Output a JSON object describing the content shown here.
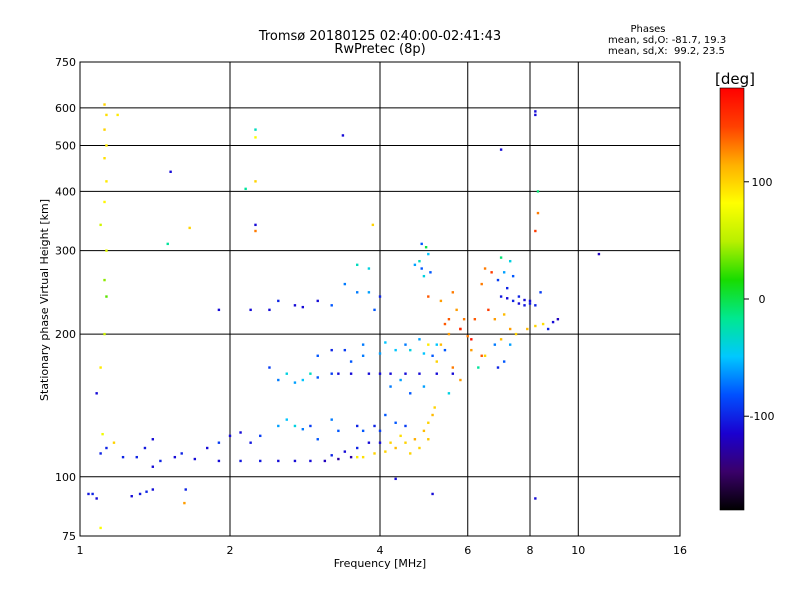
{
  "chart_data": {
    "type": "scatter",
    "title": "Tromsø 20180125 02:40:00-02:41:43",
    "subtitle": "RwPretec (8p)",
    "xlabel": "Frequency [MHz]",
    "ylabel": "Stationary phase Virtual Height [km]",
    "x_scale": "log",
    "y_scale": "log",
    "xlim": [
      1,
      16
    ],
    "ylim": [
      75,
      750
    ],
    "x_ticks": [
      1,
      2,
      4,
      6,
      8,
      10,
      16
    ],
    "y_ticks": [
      75,
      100,
      200,
      300,
      400,
      500,
      600,
      750
    ],
    "grid": true,
    "stats": {
      "heading": "Phases",
      "line1": "mean, sd,O: -81.7, 19.3",
      "line2": "mean, sd,X:  99.2, 23.5"
    },
    "colorbar": {
      "label": "[deg]",
      "range": [
        -180,
        180
      ],
      "ticks": [
        100,
        0,
        -100
      ],
      "colors": [
        "#000000",
        "#3a006a",
        "#1a00d0",
        "#0050ff",
        "#00c8ff",
        "#00e890",
        "#18dc00",
        "#b8f000",
        "#ffff00",
        "#ffb000",
        "#ff4000",
        "#ff0000"
      ]
    },
    "points": [
      [
        1.04,
        92,
        -105
      ],
      [
        1.06,
        92,
        -100
      ],
      [
        1.08,
        90,
        -110
      ],
      [
        1.27,
        91,
        -110
      ],
      [
        1.32,
        92,
        -105
      ],
      [
        1.36,
        93,
        -100
      ],
      [
        1.4,
        94,
        -108
      ],
      [
        1.22,
        110,
        -100
      ],
      [
        1.08,
        150,
        -110
      ],
      [
        1.1,
        170,
        90
      ],
      [
        1.12,
        200,
        60
      ],
      [
        1.13,
        240,
        30
      ],
      [
        1.12,
        260,
        40
      ],
      [
        1.13,
        300,
        70
      ],
      [
        1.1,
        340,
        60
      ],
      [
        1.12,
        380,
        85
      ],
      [
        1.13,
        420,
        90
      ],
      [
        1.12,
        470,
        95
      ],
      [
        1.13,
        500,
        90
      ],
      [
        1.12,
        540,
        100
      ],
      [
        1.13,
        580,
        95
      ],
      [
        1.12,
        610,
        100
      ],
      [
        1.11,
        123,
        75
      ],
      [
        1.1,
        78,
        80
      ],
      [
        1.19,
        580,
        90
      ],
      [
        1.52,
        440,
        -110
      ],
      [
        1.5,
        310,
        -20
      ],
      [
        1.66,
        335,
        100
      ],
      [
        1.63,
        94,
        -100
      ],
      [
        2.15,
        405,
        -20
      ],
      [
        2.25,
        520,
        80
      ],
      [
        2.25,
        540,
        -30
      ],
      [
        2.25,
        420,
        100
      ],
      [
        2.25,
        340,
        -110
      ],
      [
        2.25,
        330,
        130
      ],
      [
        3.37,
        525,
        -110
      ],
      [
        3.87,
        340,
        100
      ],
      [
        7.0,
        490,
        -110
      ],
      [
        8.2,
        590,
        -110
      ],
      [
        8.2,
        580,
        -110
      ],
      [
        8.3,
        400,
        -10
      ],
      [
        8.3,
        360,
        130
      ],
      [
        8.2,
        330,
        150
      ],
      [
        11.0,
        295,
        -120
      ],
      [
        4.85,
        310,
        -80
      ],
      [
        4.95,
        305,
        0
      ],
      [
        5.0,
        295,
        -50
      ],
      [
        4.7,
        280,
        -60
      ],
      [
        4.85,
        275,
        -80
      ],
      [
        5.05,
        270,
        -80
      ],
      [
        4.9,
        265,
        -40
      ],
      [
        4.8,
        285,
        -30
      ],
      [
        7.0,
        290,
        -10
      ],
      [
        7.3,
        285,
        -40
      ],
      [
        7.1,
        270,
        -60
      ],
      [
        7.4,
        265,
        -80
      ],
      [
        6.9,
        260,
        -90
      ],
      [
        7.2,
        250,
        -100
      ],
      [
        6.5,
        275,
        130
      ],
      [
        6.7,
        270,
        150
      ],
      [
        6.4,
        255,
        130
      ],
      [
        7.6,
        240,
        -100
      ],
      [
        8.0,
        235,
        -110
      ],
      [
        8.4,
        245,
        -90
      ],
      [
        7.8,
        230,
        -105
      ],
      [
        8.9,
        212,
        -110
      ],
      [
        9.1,
        215,
        -120
      ],
      [
        8.7,
        205,
        -100
      ],
      [
        7.5,
        200,
        100
      ],
      [
        7.9,
        205,
        110
      ],
      [
        8.2,
        208,
        100
      ],
      [
        8.5,
        210,
        95
      ],
      [
        6.0,
        198,
        130
      ],
      [
        5.8,
        205,
        150
      ],
      [
        5.5,
        200,
        120
      ],
      [
        5.3,
        190,
        110
      ],
      [
        5.0,
        190,
        90
      ],
      [
        6.2,
        215,
        140
      ],
      [
        6.6,
        225,
        150
      ],
      [
        6.1,
        185,
        120
      ],
      [
        5.2,
        175,
        100
      ],
      [
        5.6,
        170,
        130
      ],
      [
        6.4,
        180,
        140
      ],
      [
        6.8,
        190,
        -70
      ],
      [
        7.3,
        190,
        -60
      ],
      [
        7.1,
        175,
        -80
      ],
      [
        6.9,
        170,
        -100
      ],
      [
        5.8,
        205,
        160
      ],
      [
        6.1,
        195,
        170
      ],
      [
        5.4,
        210,
        140
      ],
      [
        5.9,
        215,
        130
      ],
      [
        5.0,
        130,
        100
      ],
      [
        4.9,
        125,
        110
      ],
      [
        4.7,
        120,
        115
      ],
      [
        4.5,
        118,
        100
      ],
      [
        4.3,
        115,
        110
      ],
      [
        4.1,
        113,
        100
      ],
      [
        3.9,
        112,
        100
      ],
      [
        3.7,
        110,
        95
      ],
      [
        3.6,
        110,
        90
      ],
      [
        4.8,
        115,
        100
      ],
      [
        5.0,
        120,
        105
      ],
      [
        4.6,
        112,
        100
      ],
      [
        4.4,
        122,
        95
      ],
      [
        4.2,
        118,
        100
      ],
      [
        5.1,
        135,
        110
      ],
      [
        5.15,
        140,
        100
      ],
      [
        3.5,
        110,
        -130
      ],
      [
        3.3,
        109,
        -130
      ],
      [
        3.1,
        108,
        -120
      ],
      [
        2.9,
        108,
        -110
      ],
      [
        2.7,
        108,
        -110
      ],
      [
        2.5,
        108,
        -110
      ],
      [
        2.3,
        108,
        -105
      ],
      [
        2.1,
        108,
        -105
      ],
      [
        1.9,
        108,
        -110
      ],
      [
        1.7,
        109,
        -110
      ],
      [
        1.55,
        110,
        -110
      ],
      [
        1.45,
        108,
        -100
      ],
      [
        1.4,
        105,
        -110
      ],
      [
        3.2,
        111,
        -100
      ],
      [
        3.4,
        113,
        -110
      ],
      [
        3.6,
        115,
        -100
      ],
      [
        3.8,
        118,
        -110
      ],
      [
        4.0,
        118,
        -110
      ],
      [
        1.6,
        112,
        -100
      ],
      [
        1.8,
        115,
        -110
      ],
      [
        1.9,
        118,
        -90
      ],
      [
        2.0,
        122,
        -110
      ],
      [
        2.1,
        124,
        -110
      ],
      [
        2.2,
        118,
        -105
      ],
      [
        2.3,
        122,
        -90
      ],
      [
        2.5,
        128,
        -60
      ],
      [
        2.6,
        132,
        -50
      ],
      [
        2.7,
        128,
        -40
      ],
      [
        2.8,
        126,
        -70
      ],
      [
        2.9,
        128,
        -90
      ],
      [
        3.0,
        120,
        -80
      ],
      [
        3.3,
        125,
        -80
      ],
      [
        3.2,
        132,
        -70
      ],
      [
        2.5,
        160,
        -70
      ],
      [
        2.6,
        165,
        -40
      ],
      [
        2.7,
        158,
        -60
      ],
      [
        2.8,
        160,
        -50
      ],
      [
        2.9,
        165,
        -30
      ],
      [
        3.0,
        162,
        -80
      ],
      [
        3.2,
        165,
        -90
      ],
      [
        2.4,
        170,
        -90
      ],
      [
        3.3,
        165,
        -110
      ],
      [
        3.5,
        165,
        -110
      ],
      [
        3.8,
        165,
        -110
      ],
      [
        4.0,
        165,
        -110
      ],
      [
        4.2,
        165,
        -110
      ],
      [
        4.5,
        165,
        -110
      ],
      [
        4.8,
        165,
        -110
      ],
      [
        5.2,
        165,
        -110
      ],
      [
        5.6,
        165,
        -110
      ],
      [
        3.5,
        175,
        -80
      ],
      [
        3.7,
        180,
        -70
      ],
      [
        4.0,
        182,
        -60
      ],
      [
        4.3,
        185,
        -50
      ],
      [
        4.6,
        185,
        -40
      ],
      [
        4.9,
        182,
        -50
      ],
      [
        5.1,
        180,
        -80
      ],
      [
        3.4,
        185,
        -90
      ],
      [
        3.2,
        185,
        -100
      ],
      [
        3.0,
        180,
        -80
      ],
      [
        3.7,
        190,
        -70
      ],
      [
        4.1,
        192,
        -50
      ],
      [
        4.5,
        190,
        -70
      ],
      [
        4.8,
        195,
        -60
      ],
      [
        5.2,
        190,
        -50
      ],
      [
        5.4,
        185,
        -80
      ],
      [
        3.9,
        225,
        -80
      ],
      [
        4.0,
        240,
        -100
      ],
      [
        3.2,
        230,
        -80
      ],
      [
        3.0,
        235,
        -110
      ],
      [
        2.8,
        228,
        -110
      ],
      [
        2.7,
        230,
        -110
      ],
      [
        2.5,
        235,
        -100
      ],
      [
        2.4,
        225,
        -110
      ],
      [
        2.2,
        225,
        -110
      ],
      [
        1.9,
        225,
        -110
      ],
      [
        3.6,
        245,
        -70
      ],
      [
        3.4,
        255,
        -70
      ],
      [
        3.8,
        245,
        -60
      ],
      [
        3.6,
        280,
        -30
      ],
      [
        3.8,
        275,
        -40
      ],
      [
        7.0,
        240,
        -105
      ],
      [
        7.2,
        238,
        -110
      ],
      [
        7.6,
        232,
        -110
      ],
      [
        8.0,
        232,
        -105
      ],
      [
        8.2,
        230,
        -100
      ],
      [
        7.8,
        236,
        -110
      ],
      [
        7.4,
        235,
        -100
      ],
      [
        5.0,
        240,
        140
      ],
      [
        5.3,
        235,
        120
      ],
      [
        5.6,
        245,
        130
      ],
      [
        5.7,
        225,
        120
      ],
      [
        5.5,
        215,
        140
      ],
      [
        6.8,
        215,
        120
      ],
      [
        7.1,
        220,
        110
      ],
      [
        7.3,
        205,
        120
      ],
      [
        7.0,
        195,
        110
      ],
      [
        6.5,
        180,
        100
      ],
      [
        6.3,
        170,
        -20
      ],
      [
        5.8,
        160,
        120
      ],
      [
        5.5,
        150,
        -40
      ],
      [
        4.6,
        150,
        -80
      ],
      [
        4.9,
        155,
        -60
      ],
      [
        4.4,
        160,
        -60
      ],
      [
        4.2,
        155,
        -70
      ],
      [
        4.1,
        135,
        -80
      ],
      [
        4.3,
        130,
        -80
      ],
      [
        4.5,
        128,
        -90
      ],
      [
        3.9,
        128,
        -100
      ],
      [
        4.0,
        125,
        -90
      ],
      [
        3.7,
        125,
        -80
      ],
      [
        3.6,
        128,
        -100
      ],
      [
        4.3,
        99,
        -110
      ],
      [
        5.1,
        92,
        -110
      ],
      [
        8.2,
        90,
        -110
      ],
      [
        1.62,
        88,
        120
      ],
      [
        1.1,
        112,
        -100
      ],
      [
        1.13,
        115,
        -100
      ],
      [
        1.17,
        118,
        100
      ],
      [
        1.4,
        120,
        -110
      ],
      [
        1.35,
        115,
        -105
      ],
      [
        1.3,
        110,
        -100
      ]
    ]
  }
}
